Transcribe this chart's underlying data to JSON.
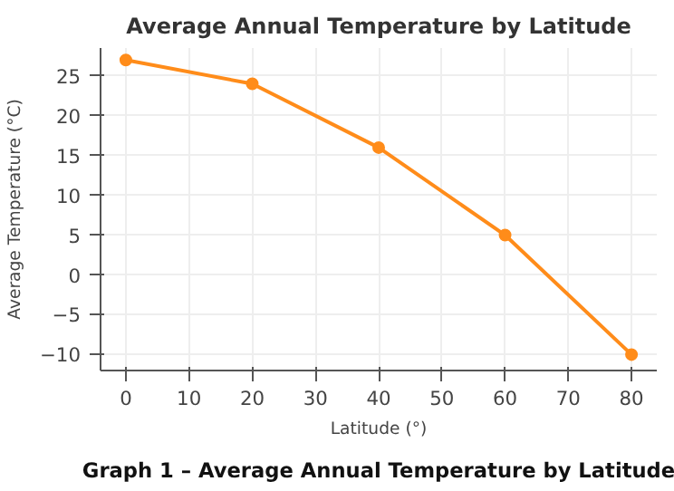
{
  "chart_data": {
    "type": "line",
    "title": "Average Annual Temperature by Latitude",
    "xlabel": "Latitude (°)",
    "ylabel": "Average Temperature (°C)",
    "x": [
      0,
      20,
      40,
      60,
      80
    ],
    "series": [
      {
        "color": "#ff8c1a",
        "values": [
          27,
          24,
          16,
          5,
          -10
        ]
      }
    ],
    "xlim": [
      -4,
      84
    ],
    "ylim": [
      -12,
      28.5
    ],
    "xticks": [
      0,
      10,
      20,
      30,
      40,
      50,
      60,
      70,
      80
    ],
    "yticks": [
      {
        "value": -10,
        "label": "−10"
      },
      {
        "value": -5,
        "label": "−5"
      },
      0,
      5,
      10,
      15,
      20,
      25
    ],
    "grid": true,
    "marker": "circle",
    "line_style": "solid",
    "annotations": [
      "Graph 1 – Average Annual Temperature by Latitude"
    ]
  }
}
